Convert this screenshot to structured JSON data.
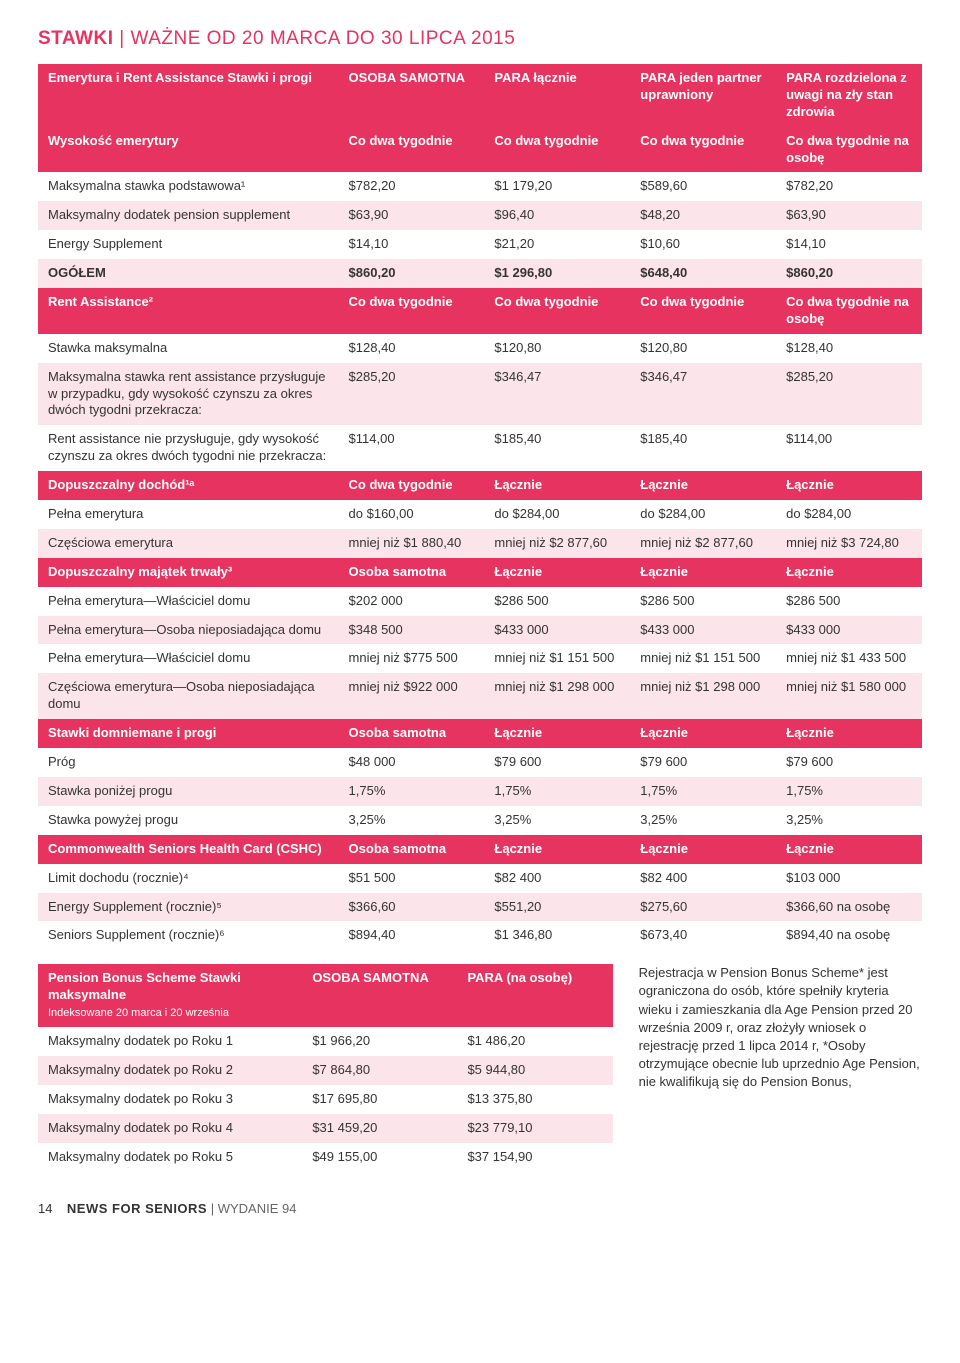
{
  "title_prefix": "STAWKI",
  "title_rest": " | WAŻNE OD 20 MARCA DO 30 LIPCA 2015",
  "footer": {
    "page": "14",
    "mag": "NEWS FOR SENIORS",
    "edition": " | WYDANIE 94"
  },
  "t1": {
    "hdr1": [
      "Emerytura i Rent Assistance Stawki i progi",
      "OSOBA SAMOTNA",
      "PARA łącznie",
      "PARA jeden partner uprawniony",
      "PARA rozdzielona z uwagi na zły stan zdrowia"
    ],
    "r1": [
      "Wysokość emerytury",
      "Co dwa tygodnie",
      "Co dwa tygodnie",
      "Co dwa tygodnie",
      "Co dwa tygodnie na osobę"
    ],
    "r2": [
      "Maksymalna stawka podstawowa¹",
      "$782,20",
      "$1 179,20",
      "$589,60",
      "$782,20"
    ],
    "r3": [
      "Maksymalny dodatek pension supplement",
      "$63,90",
      "$96,40",
      "$48,20",
      "$63,90"
    ],
    "r4": [
      "Energy Supplement",
      "$14,10",
      "$21,20",
      "$10,60",
      "$14,10"
    ],
    "r5": [
      "OGÓŁEM",
      "$860,20",
      "$1 296,80",
      "$648,40",
      "$860,20"
    ],
    "r6": [
      "Rent Assistance²",
      "Co dwa tygodnie",
      "Co dwa tygodnie",
      "Co dwa tygodnie",
      "Co dwa tygodnie na osobę"
    ],
    "r7": [
      "Stawka maksymalna",
      "$128,40",
      "$120,80",
      "$120,80",
      "$128,40"
    ],
    "r8": [
      "Maksymalna stawka rent assistance przysługuje w przypadku, gdy wysokość czynszu za okres dwóch tygodni przekracza:",
      "$285,20",
      "$346,47",
      "$346,47",
      "$285,20"
    ],
    "r9": [
      "Rent assistance nie przysługuje, gdy wysokość czynszu za okres dwóch tygodni nie przekracza:",
      "$114,00",
      "$185,40",
      "$185,40",
      "$114,00"
    ],
    "r10": [
      "Dopuszczalny dochód¹ᵃ",
      "Co dwa tygodnie",
      "Łącznie",
      "Łącznie",
      "Łącznie"
    ],
    "r11": [
      "Pełna emerytura",
      "do $160,00",
      "do $284,00",
      "do $284,00",
      "do $284,00"
    ],
    "r12": [
      "Częściowa emerytura",
      "mniej niż $1 880,40",
      "mniej niż $2 877,60",
      "mniej niż $2 877,60",
      "mniej niż $3 724,80"
    ],
    "r13": [
      "Dopuszczalny majątek trwały³",
      "Osoba samotna",
      "Łącznie",
      "Łącznie",
      "Łącznie"
    ],
    "r14": [
      "Pełna emerytura—Właściciel domu",
      "$202 000",
      "$286 500",
      "$286 500",
      "$286 500"
    ],
    "r15": [
      "Pełna emerytura—Osoba nieposiadająca domu",
      "$348 500",
      "$433 000",
      "$433 000",
      "$433 000"
    ],
    "r16": [
      "Pełna emerytura—Właściciel domu",
      "mniej niż $775 500",
      "mniej niż $1 151 500",
      "mniej niż $1 151 500",
      "mniej niż $1 433 500"
    ],
    "r17": [
      "Częściowa emerytura—Osoba nieposiadająca domu",
      "mniej niż $922 000",
      "mniej niż $1 298 000",
      "mniej niż $1 298 000",
      "mniej niż $1 580 000"
    ],
    "r18": [
      "Stawki domniemane i progi",
      "Osoba samotna",
      "Łącznie",
      "Łącznie",
      "Łącznie"
    ],
    "r19": [
      "Próg",
      "$48 000",
      "$79 600",
      "$79 600",
      "$79 600"
    ],
    "r20": [
      "Stawka poniżej progu",
      "1,75%",
      "1,75%",
      "1,75%",
      "1,75%"
    ],
    "r21": [
      "Stawka powyżej progu",
      "3,25%",
      "3,25%",
      "3,25%",
      "3,25%"
    ],
    "r22": [
      "Commonwealth Seniors Health Card (CSHC)",
      "Osoba samotna",
      "Łącznie",
      "Łącznie",
      "Łącznie"
    ],
    "r23": [
      "Limit dochodu (rocznie)⁴",
      "$51 500",
      "$82 400",
      "$82 400",
      "$103 000"
    ],
    "r24": [
      "Energy Supplement (rocznie)⁵",
      "$366,60",
      "$551,20",
      "$275,60",
      "$366,60 na osobę"
    ],
    "r25": [
      "Seniors Supplement (rocznie)⁶",
      "$894,40",
      "$1 346,80",
      "$673,40",
      "$894,40 na osobę"
    ]
  },
  "t2": {
    "hdr_a": "Pension Bonus Scheme Stawki maksymalne",
    "hdr_a_sub": "Indeksowane 20 marca i 20 września",
    "hdr_b": "OSOBA SAMOTNA",
    "hdr_c": "PARA (na osobę)",
    "r1": [
      "Maksymalny dodatek po Roku 1",
      "$1 966,20",
      "$1 486,20"
    ],
    "r2": [
      "Maksymalny dodatek po Roku 2",
      "$7 864,80",
      "$5 944,80"
    ],
    "r3": [
      "Maksymalny dodatek po Roku 3",
      "$17 695,80",
      "$13 375,80"
    ],
    "r4": [
      "Maksymalny dodatek po Roku 4",
      "$31 459,20",
      "$23 779,10"
    ],
    "r5": [
      "Maksymalny dodatek po Roku 5",
      "$49 155,00",
      "$37 154,90"
    ]
  },
  "note": "Rejestracja w Pension Bonus Scheme* jest ograniczona do osób, które spełniły kryteria wieku i zamieszkania dla Age Pension przed 20 września 2009 r, oraz złożyły wniosek o rejestrację przed 1 lipca 2014 r, *Osoby otrzymujące obecnie lub uprzednio Age Pension, nie kwalifikują się do Pension Bonus,"
}
